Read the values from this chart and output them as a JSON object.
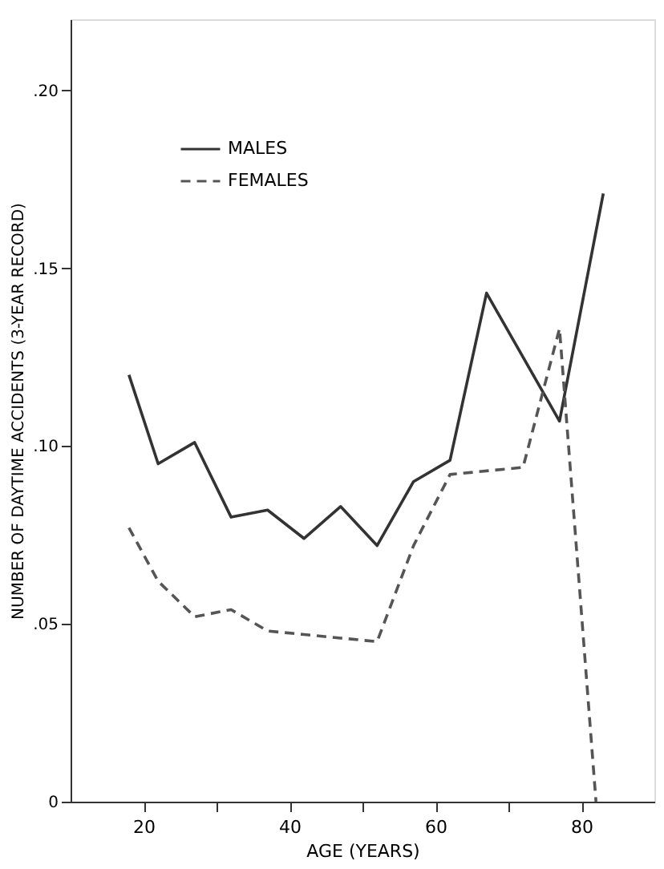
{
  "chart_data": {
    "type": "line",
    "xlabel": "AGE (YEARS)",
    "ylabel": "NUMBER OF DAYTIME ACCIDENTS (3-YEAR RECORD)",
    "xlim": [
      10,
      90
    ],
    "xticks": [
      20,
      {
        "value": 30,
        "label": null
      },
      40,
      {
        "value": 50,
        "label": null
      },
      60,
      {
        "value": 70,
        "label": null
      },
      80
    ],
    "ylim": [
      0,
      0.22
    ],
    "yticks": [
      {
        "value": 0,
        "label": "0"
      },
      {
        "value": 0.05,
        "label": ".05"
      },
      {
        "value": 0.1,
        "label": ".10"
      },
      {
        "value": 0.15,
        "label": ".15"
      },
      {
        "value": 0.2,
        "label": ".20"
      }
    ],
    "grid": false,
    "legend": "top left",
    "marker": "none",
    "series": [
      {
        "name": "MALES",
        "color": "#333333",
        "line_style": "solid",
        "x": [
          18,
          22,
          27,
          32,
          37,
          42,
          47,
          52,
          57,
          62,
          67,
          77,
          83
        ],
        "values": [
          0.12,
          0.095,
          0.101,
          0.08,
          0.082,
          0.074,
          0.083,
          0.072,
          0.09,
          0.096,
          0.143,
          0.107,
          0.171
        ]
      },
      {
        "name": "FEMALES",
        "color": "#555555",
        "line_style": "dashed",
        "x": [
          18,
          22,
          27,
          32,
          37,
          42,
          47,
          52,
          57,
          62,
          72,
          77,
          82
        ],
        "values": [
          0.077,
          0.062,
          0.052,
          0.054,
          0.048,
          0.047,
          0.046,
          0.045,
          0.072,
          0.092,
          0.094,
          0.133,
          0
        ]
      }
    ]
  }
}
